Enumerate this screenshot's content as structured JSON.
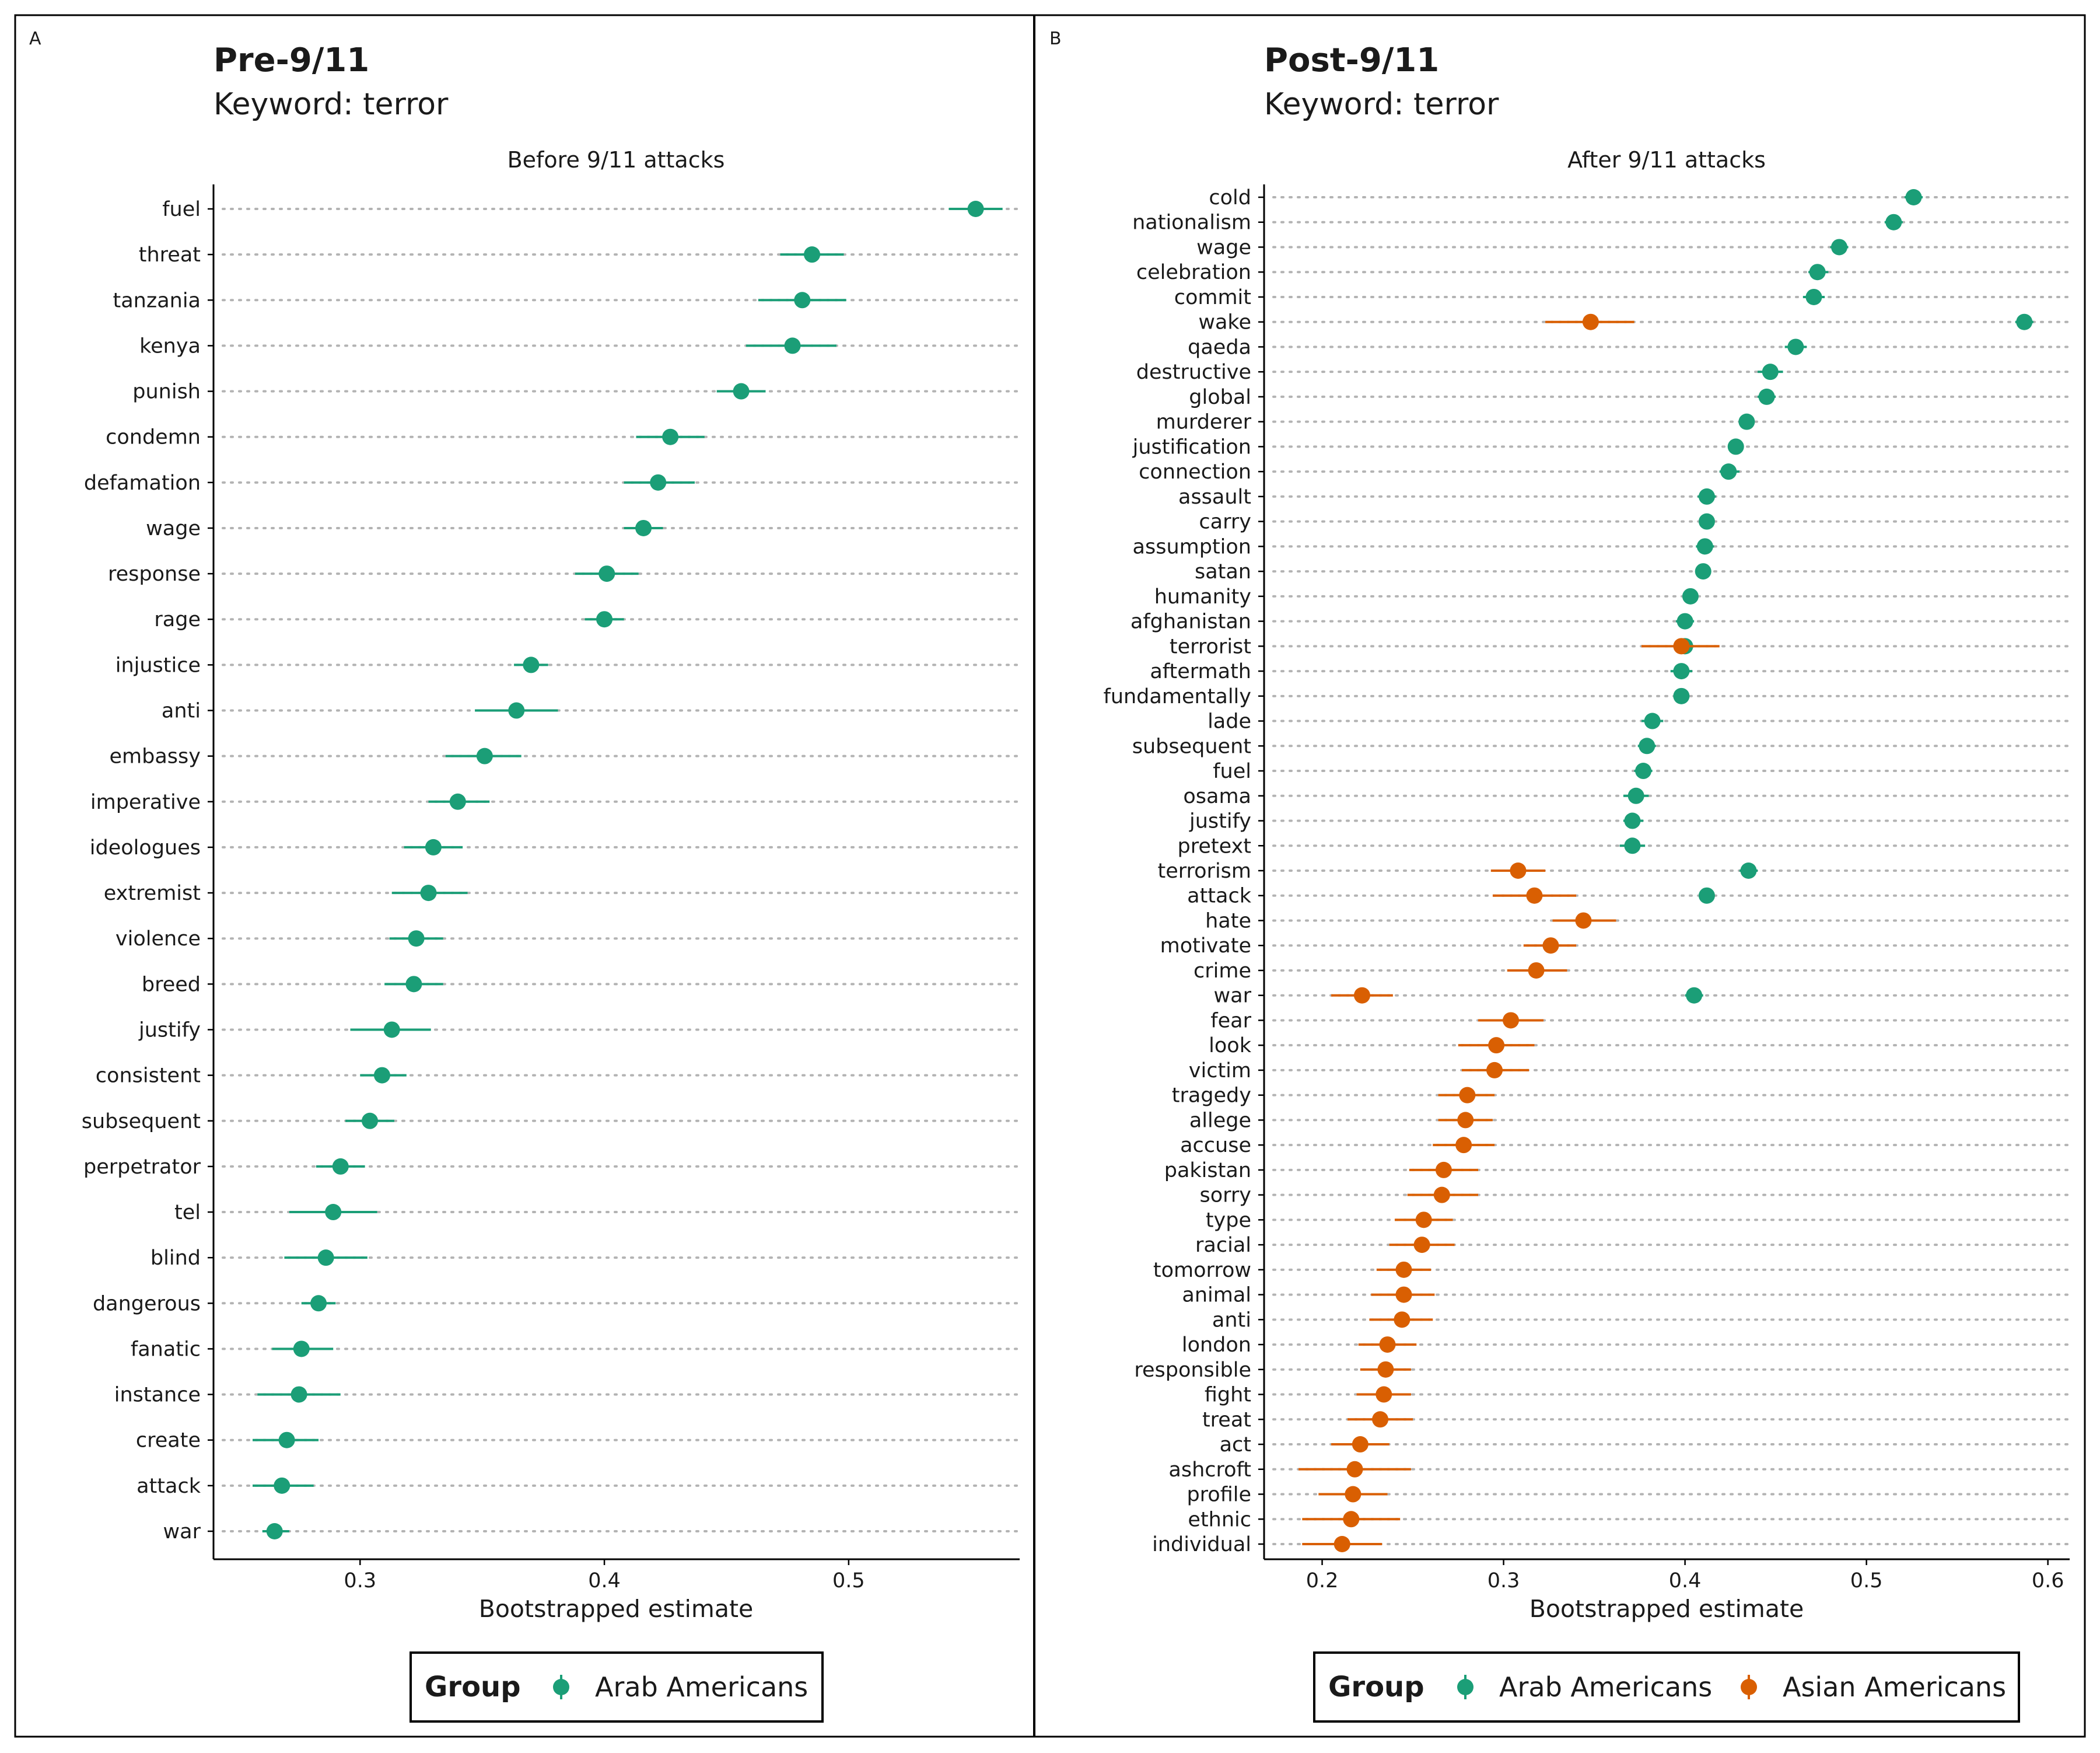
{
  "colors": {
    "arab": "#1b9e77",
    "asian": "#d95f02"
  },
  "chart_data": [
    {
      "type": "scatter",
      "panel_tag": "A",
      "title": "Pre-9/11",
      "subtitle": "Keyword: terror",
      "facet_title": "Before 9/11 attacks",
      "xlabel": "Bootstrapped estimate",
      "ylabel": "",
      "xlim": [
        0.24,
        0.57
      ],
      "xticks": [
        0.3,
        0.4,
        0.5
      ],
      "grid": "horizontal-dotted",
      "legend": {
        "title": "Group",
        "items": [
          "Arab Americans"
        ],
        "position": "bottom"
      },
      "categories": [
        "fuel",
        "threat",
        "tanzania",
        "kenya",
        "punish",
        "condemn",
        "defamation",
        "wage",
        "response",
        "rage",
        "injustice",
        "anti",
        "embassy",
        "imperative",
        "ideologues",
        "extremist",
        "violence",
        "breed",
        "justify",
        "consistent",
        "subsequent",
        "perpetrator",
        "tel",
        "blind",
        "dangerous",
        "fanatic",
        "instance",
        "create",
        "attack",
        "war"
      ],
      "series": [
        {
          "name": "Arab Americans",
          "color_key": "arab",
          "points": [
            {
              "y": "fuel",
              "x": 0.552,
              "lo": 0.541,
              "hi": 0.563
            },
            {
              "y": "threat",
              "x": 0.485,
              "lo": 0.472,
              "hi": 0.498
            },
            {
              "y": "tanzania",
              "x": 0.481,
              "lo": 0.463,
              "hi": 0.499
            },
            {
              "y": "kenya",
              "x": 0.477,
              "lo": 0.458,
              "hi": 0.495
            },
            {
              "y": "punish",
              "x": 0.456,
              "lo": 0.446,
              "hi": 0.466
            },
            {
              "y": "condemn",
              "x": 0.427,
              "lo": 0.413,
              "hi": 0.441
            },
            {
              "y": "defamation",
              "x": 0.422,
              "lo": 0.408,
              "hi": 0.437
            },
            {
              "y": "wage",
              "x": 0.416,
              "lo": 0.408,
              "hi": 0.424
            },
            {
              "y": "response",
              "x": 0.401,
              "lo": 0.388,
              "hi": 0.414
            },
            {
              "y": "rage",
              "x": 0.4,
              "lo": 0.392,
              "hi": 0.408
            },
            {
              "y": "injustice",
              "x": 0.37,
              "lo": 0.363,
              "hi": 0.377
            },
            {
              "y": "anti",
              "x": 0.364,
              "lo": 0.347,
              "hi": 0.381
            },
            {
              "y": "embassy",
              "x": 0.351,
              "lo": 0.335,
              "hi": 0.366
            },
            {
              "y": "imperative",
              "x": 0.34,
              "lo": 0.328,
              "hi": 0.353
            },
            {
              "y": "ideologues",
              "x": 0.33,
              "lo": 0.318,
              "hi": 0.342
            },
            {
              "y": "extremist",
              "x": 0.328,
              "lo": 0.313,
              "hi": 0.344
            },
            {
              "y": "violence",
              "x": 0.323,
              "lo": 0.312,
              "hi": 0.334
            },
            {
              "y": "breed",
              "x": 0.322,
              "lo": 0.31,
              "hi": 0.334
            },
            {
              "y": "justify",
              "x": 0.313,
              "lo": 0.296,
              "hi": 0.329
            },
            {
              "y": "consistent",
              "x": 0.309,
              "lo": 0.3,
              "hi": 0.319
            },
            {
              "y": "subsequent",
              "x": 0.304,
              "lo": 0.294,
              "hi": 0.314
            },
            {
              "y": "perpetrator",
              "x": 0.292,
              "lo": 0.282,
              "hi": 0.302
            },
            {
              "y": "tel",
              "x": 0.289,
              "lo": 0.271,
              "hi": 0.307
            },
            {
              "y": "blind",
              "x": 0.286,
              "lo": 0.269,
              "hi": 0.303
            },
            {
              "y": "dangerous",
              "x": 0.283,
              "lo": 0.276,
              "hi": 0.29
            },
            {
              "y": "fanatic",
              "x": 0.276,
              "lo": 0.264,
              "hi": 0.289
            },
            {
              "y": "instance",
              "x": 0.275,
              "lo": 0.258,
              "hi": 0.292
            },
            {
              "y": "create",
              "x": 0.27,
              "lo": 0.256,
              "hi": 0.283
            },
            {
              "y": "attack",
              "x": 0.268,
              "lo": 0.256,
              "hi": 0.281
            },
            {
              "y": "war",
              "x": 0.265,
              "lo": 0.26,
              "hi": 0.271
            }
          ]
        }
      ]
    },
    {
      "type": "scatter",
      "panel_tag": "B",
      "title": "Post-9/11",
      "subtitle": "Keyword: terror",
      "facet_title": "After 9/11 attacks",
      "xlabel": "Bootstrapped estimate",
      "ylabel": "",
      "xlim": [
        0.168,
        0.612
      ],
      "xticks": [
        0.2,
        0.3,
        0.4,
        0.5,
        0.6
      ],
      "grid": "horizontal-dotted",
      "legend": {
        "title": "Group",
        "items": [
          "Arab Americans",
          "Asian Americans"
        ],
        "position": "bottom"
      },
      "categories": [
        "cold",
        "nationalism",
        "wage",
        "celebration",
        "commit",
        "wake",
        "qaeda",
        "destructive",
        "global",
        "murderer",
        "justification",
        "connection",
        "assault",
        "carry",
        "assumption",
        "satan",
        "humanity",
        "afghanistan",
        "terrorist",
        "aftermath",
        "fundamentally",
        "lade",
        "subsequent",
        "fuel",
        "osama",
        "justify",
        "pretext",
        "terrorism",
        "attack",
        "hate",
        "motivate",
        "crime",
        "war",
        "fear",
        "look",
        "victim",
        "tragedy",
        "allege",
        "accuse",
        "pakistan",
        "sorry",
        "type",
        "racial",
        "tomorrow",
        "animal",
        "anti",
        "london",
        "responsible",
        "fight",
        "treat",
        "act",
        "ashcroft",
        "profile",
        "ethnic",
        "individual"
      ],
      "series": [
        {
          "name": "Arab Americans",
          "color_key": "arab",
          "points": [
            {
              "y": "cold",
              "x": 0.526,
              "lo": 0.521,
              "hi": 0.531
            },
            {
              "y": "nationalism",
              "x": 0.515,
              "lo": 0.51,
              "hi": 0.52
            },
            {
              "y": "wage",
              "x": 0.485,
              "lo": 0.48,
              "hi": 0.49
            },
            {
              "y": "celebration",
              "x": 0.473,
              "lo": 0.468,
              "hi": 0.479
            },
            {
              "y": "commit",
              "x": 0.471,
              "lo": 0.465,
              "hi": 0.477
            },
            {
              "y": "wake",
              "x": 0.587,
              "lo": 0.582,
              "hi": 0.592
            },
            {
              "y": "qaeda",
              "x": 0.461,
              "lo": 0.455,
              "hi": 0.467
            },
            {
              "y": "destructive",
              "x": 0.447,
              "lo": 0.44,
              "hi": 0.454
            },
            {
              "y": "global",
              "x": 0.445,
              "lo": 0.44,
              "hi": 0.45
            },
            {
              "y": "murderer",
              "x": 0.434,
              "lo": 0.43,
              "hi": 0.438
            },
            {
              "y": "justification",
              "x": 0.428,
              "lo": 0.424,
              "hi": 0.432
            },
            {
              "y": "connection",
              "x": 0.424,
              "lo": 0.419,
              "hi": 0.43
            },
            {
              "y": "assault",
              "x": 0.412,
              "lo": 0.407,
              "hi": 0.417
            },
            {
              "y": "carry",
              "x": 0.412,
              "lo": 0.408,
              "hi": 0.416
            },
            {
              "y": "assumption",
              "x": 0.411,
              "lo": 0.406,
              "hi": 0.416
            },
            {
              "y": "satan",
              "x": 0.41,
              "lo": 0.406,
              "hi": 0.414
            },
            {
              "y": "humanity",
              "x": 0.403,
              "lo": 0.399,
              "hi": 0.407
            },
            {
              "y": "afghanistan",
              "x": 0.4,
              "lo": 0.395,
              "hi": 0.405
            },
            {
              "y": "terrorist",
              "x": 0.4,
              "lo": 0.395,
              "hi": 0.405
            },
            {
              "y": "aftermath",
              "x": 0.398,
              "lo": 0.392,
              "hi": 0.404
            },
            {
              "y": "fundamentally",
              "x": 0.398,
              "lo": 0.394,
              "hi": 0.402
            },
            {
              "y": "lade",
              "x": 0.382,
              "lo": 0.376,
              "hi": 0.388
            },
            {
              "y": "subsequent",
              "x": 0.379,
              "lo": 0.374,
              "hi": 0.384
            },
            {
              "y": "fuel",
              "x": 0.377,
              "lo": 0.372,
              "hi": 0.382
            },
            {
              "y": "osama",
              "x": 0.373,
              "lo": 0.366,
              "hi": 0.38
            },
            {
              "y": "justify",
              "x": 0.371,
              "lo": 0.366,
              "hi": 0.377
            },
            {
              "y": "pretext",
              "x": 0.371,
              "lo": 0.364,
              "hi": 0.378
            },
            {
              "y": "terrorism",
              "x": 0.435,
              "lo": 0.43,
              "hi": 0.44
            },
            {
              "y": "attack",
              "x": 0.412,
              "lo": 0.408,
              "hi": 0.416
            },
            {
              "y": "war",
              "x": 0.405,
              "lo": 0.4,
              "hi": 0.41
            }
          ]
        },
        {
          "name": "Asian Americans",
          "color_key": "asian",
          "points": [
            {
              "y": "wake",
              "x": 0.348,
              "lo": 0.323,
              "hi": 0.372
            },
            {
              "y": "terrorist",
              "x": 0.398,
              "lo": 0.376,
              "hi": 0.419
            },
            {
              "y": "terrorism",
              "x": 0.308,
              "lo": 0.293,
              "hi": 0.323
            },
            {
              "y": "attack",
              "x": 0.317,
              "lo": 0.294,
              "hi": 0.34
            },
            {
              "y": "hate",
              "x": 0.344,
              "lo": 0.327,
              "hi": 0.362
            },
            {
              "y": "motivate",
              "x": 0.326,
              "lo": 0.311,
              "hi": 0.34
            },
            {
              "y": "crime",
              "x": 0.318,
              "lo": 0.302,
              "hi": 0.335
            },
            {
              "y": "war",
              "x": 0.222,
              "lo": 0.205,
              "hi": 0.239
            },
            {
              "y": "fear",
              "x": 0.304,
              "lo": 0.286,
              "hi": 0.322
            },
            {
              "y": "look",
              "x": 0.296,
              "lo": 0.275,
              "hi": 0.317
            },
            {
              "y": "victim",
              "x": 0.295,
              "lo": 0.277,
              "hi": 0.314
            },
            {
              "y": "tragedy",
              "x": 0.28,
              "lo": 0.264,
              "hi": 0.295
            },
            {
              "y": "allege",
              "x": 0.279,
              "lo": 0.264,
              "hi": 0.294
            },
            {
              "y": "accuse",
              "x": 0.278,
              "lo": 0.261,
              "hi": 0.295
            },
            {
              "y": "pakistan",
              "x": 0.267,
              "lo": 0.248,
              "hi": 0.286
            },
            {
              "y": "sorry",
              "x": 0.266,
              "lo": 0.247,
              "hi": 0.286
            },
            {
              "y": "type",
              "x": 0.256,
              "lo": 0.24,
              "hi": 0.272
            },
            {
              "y": "racial",
              "x": 0.255,
              "lo": 0.237,
              "hi": 0.273
            },
            {
              "y": "tomorrow",
              "x": 0.245,
              "lo": 0.23,
              "hi": 0.26
            },
            {
              "y": "animal",
              "x": 0.245,
              "lo": 0.227,
              "hi": 0.262
            },
            {
              "y": "anti",
              "x": 0.244,
              "lo": 0.226,
              "hi": 0.261
            },
            {
              "y": "london",
              "x": 0.236,
              "lo": 0.22,
              "hi": 0.252
            },
            {
              "y": "responsible",
              "x": 0.235,
              "lo": 0.221,
              "hi": 0.249
            },
            {
              "y": "fight",
              "x": 0.234,
              "lo": 0.219,
              "hi": 0.249
            },
            {
              "y": "treat",
              "x": 0.232,
              "lo": 0.214,
              "hi": 0.25
            },
            {
              "y": "act",
              "x": 0.221,
              "lo": 0.205,
              "hi": 0.237
            },
            {
              "y": "ashcroft",
              "x": 0.218,
              "lo": 0.187,
              "hi": 0.249
            },
            {
              "y": "profile",
              "x": 0.217,
              "lo": 0.198,
              "hi": 0.236
            },
            {
              "y": "ethnic",
              "x": 0.216,
              "lo": 0.189,
              "hi": 0.243
            },
            {
              "y": "individual",
              "x": 0.211,
              "lo": 0.189,
              "hi": 0.233
            }
          ]
        }
      ]
    }
  ]
}
